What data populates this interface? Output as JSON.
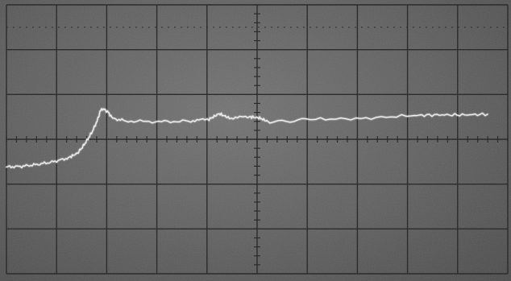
{
  "screen": {
    "background_color": "#5e5e5e",
    "grid_color": "#2c2c2c",
    "trace_color": "#f2f2f2"
  },
  "graticule": {
    "vertical_divisions": 10,
    "horizontal_divisions": 6,
    "minor_ticks_per_division": 5
  },
  "waveform": {
    "type": "step-response",
    "description_points": [
      [
        0.0,
        0.94
      ],
      [
        0.03,
        0.93
      ],
      [
        0.06,
        0.9
      ],
      [
        0.09,
        0.86
      ],
      [
        0.12,
        0.8
      ],
      [
        0.14,
        0.72
      ],
      [
        0.15,
        0.62
      ],
      [
        0.16,
        0.5
      ],
      [
        0.17,
        0.36
      ],
      [
        0.18,
        0.18
      ],
      [
        0.185,
        0.04
      ],
      [
        0.19,
        0.0
      ],
      [
        0.2,
        0.05
      ],
      [
        0.21,
        0.16
      ],
      [
        0.24,
        0.2
      ],
      [
        0.3,
        0.21
      ],
      [
        0.36,
        0.2
      ],
      [
        0.4,
        0.17
      ],
      [
        0.42,
        0.08
      ],
      [
        0.44,
        0.15
      ],
      [
        0.48,
        0.13
      ],
      [
        0.5,
        0.15
      ],
      [
        0.52,
        0.22
      ],
      [
        0.6,
        0.17
      ],
      [
        0.7,
        0.16
      ],
      [
        0.8,
        0.11
      ],
      [
        0.85,
        0.1
      ],
      [
        0.9,
        0.1
      ],
      [
        0.95,
        0.09
      ]
    ]
  }
}
